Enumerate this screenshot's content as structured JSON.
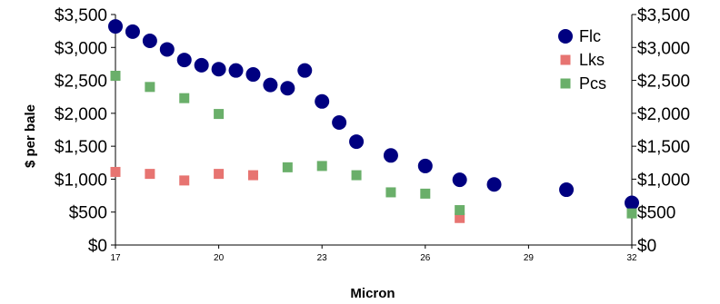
{
  "chart_data": {
    "type": "scatter",
    "title": "",
    "xlabel": "Micron",
    "ylabel": "$ per bale",
    "xlim": [
      17,
      32
    ],
    "ylim": [
      0,
      3500
    ],
    "x_ticks": [
      17,
      20,
      23,
      26,
      29,
      32
    ],
    "x_tick_labels": [
      "17",
      "20",
      "23",
      "26",
      "29",
      "32"
    ],
    "y_ticks": [
      0,
      500,
      1000,
      1500,
      2000,
      2500,
      3000,
      3500
    ],
    "y_tick_labels": [
      "$0",
      "$500",
      "$1,000",
      "$1,500",
      "$2,000",
      "$2,500",
      "$3,000",
      "$3,500"
    ],
    "grid": false,
    "secondary_y_axis": true,
    "legend": "top-right",
    "series": [
      {
        "name": "Flc",
        "color": "#000080",
        "marker": "circle",
        "points": [
          [
            17,
            3320
          ],
          [
            17.5,
            3240
          ],
          [
            18,
            3100
          ],
          [
            18.5,
            2970
          ],
          [
            19,
            2810
          ],
          [
            19.5,
            2730
          ],
          [
            20,
            2670
          ],
          [
            20.5,
            2650
          ],
          [
            21,
            2590
          ],
          [
            21.5,
            2430
          ],
          [
            22,
            2380
          ],
          [
            22.5,
            2650
          ],
          [
            23,
            2180
          ],
          [
            23.5,
            1860
          ],
          [
            24,
            1570
          ],
          [
            25,
            1360
          ],
          [
            26,
            1200
          ],
          [
            27,
            990
          ],
          [
            28,
            920
          ],
          [
            30.1,
            840
          ],
          [
            32,
            640
          ]
        ]
      },
      {
        "name": "Lks",
        "color": "#E77471",
        "marker": "square",
        "points": [
          [
            17,
            1110
          ],
          [
            18,
            1080
          ],
          [
            19,
            980
          ],
          [
            20,
            1080
          ],
          [
            21,
            1060
          ],
          [
            27,
            410
          ]
        ]
      },
      {
        "name": "Pcs",
        "color": "#6AAF6A",
        "marker": "square",
        "points": [
          [
            17,
            2570
          ],
          [
            18,
            2400
          ],
          [
            19,
            2230
          ],
          [
            20,
            1990
          ],
          [
            22,
            1180
          ],
          [
            23,
            1200
          ],
          [
            24,
            1060
          ],
          [
            25,
            800
          ],
          [
            26,
            780
          ],
          [
            27,
            530
          ],
          [
            32,
            480
          ]
        ]
      }
    ]
  }
}
